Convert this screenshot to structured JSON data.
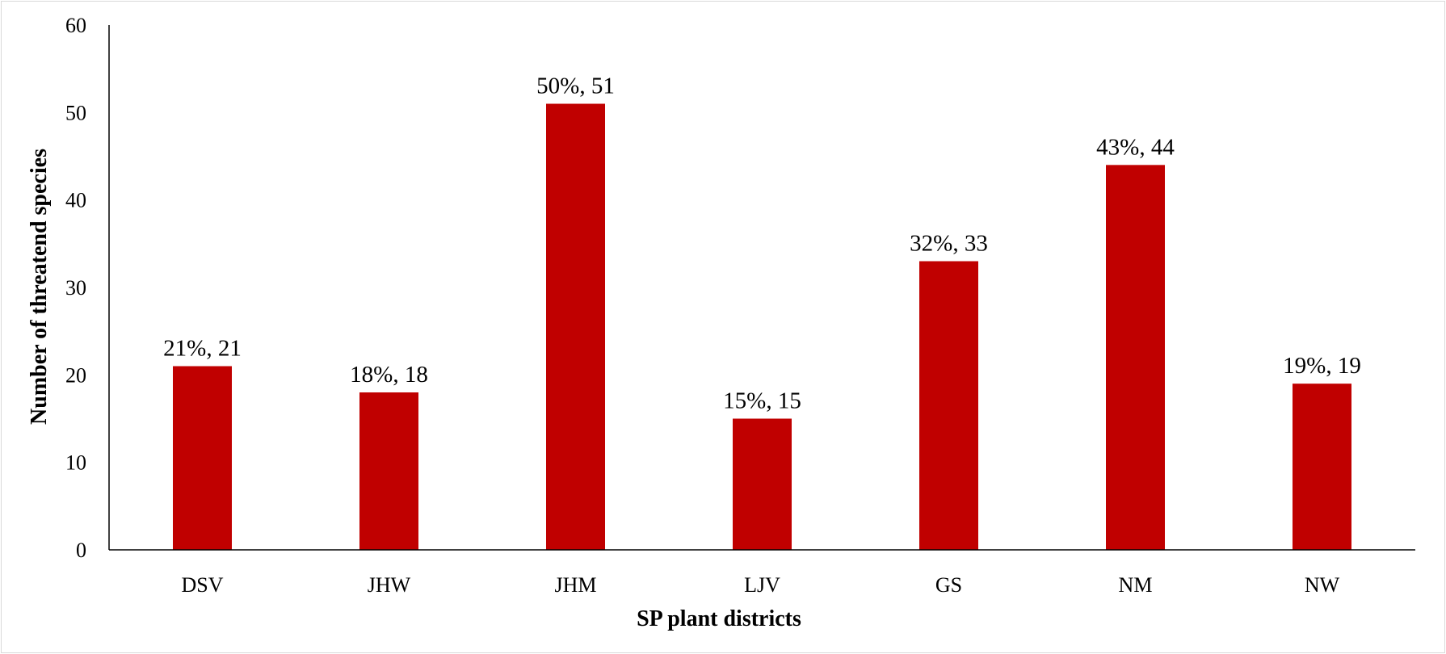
{
  "chart_data": {
    "type": "bar",
    "title": "",
    "xlabel": "SP plant districts",
    "ylabel": "Number of threatend species",
    "categories": [
      "DSV",
      "JHW",
      "JHM",
      "LJV",
      "GS",
      "NM",
      "NW"
    ],
    "series": [
      {
        "values": [
          21,
          18,
          51,
          15,
          33,
          44,
          19
        ],
        "data_labels": [
          "21%, 21",
          "18%, 18",
          "50%, 51",
          "15%, 15",
          "32%, 33",
          "43%, 44",
          "19%, 19"
        ],
        "color": "#c00000"
      }
    ],
    "ylim": [
      0,
      60
    ],
    "yticks": [
      "0",
      "10",
      "20",
      "30",
      "40",
      "50",
      "60"
    ],
    "grid": false,
    "legend": "none"
  }
}
